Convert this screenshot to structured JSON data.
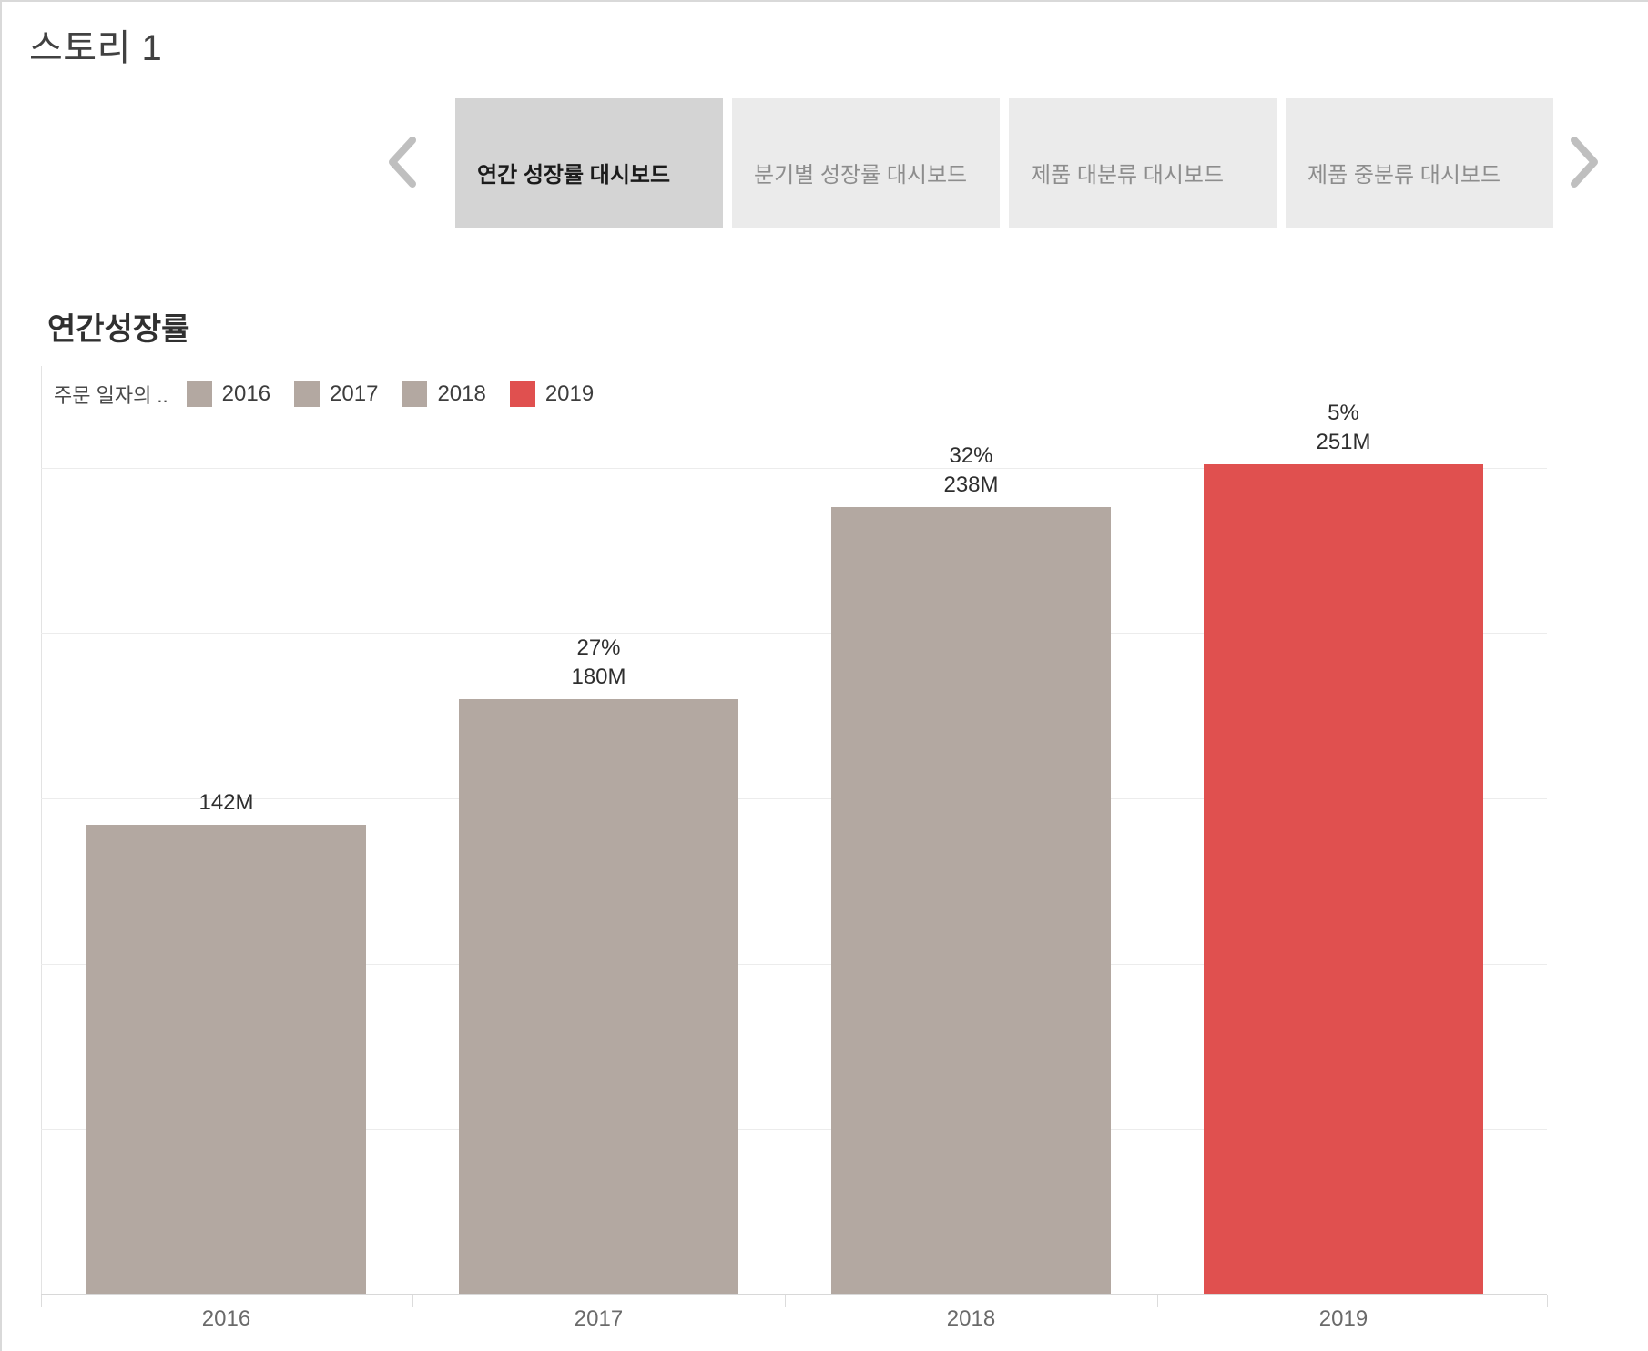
{
  "window": {
    "title": "스토리 1"
  },
  "story_nav": {
    "prev_icon": "chevron-left",
    "next_icon": "chevron-right",
    "tabs": [
      {
        "label": "연간 성장률 대시보드",
        "active": true
      },
      {
        "label": "분기별 성장률 대시보드",
        "active": false
      },
      {
        "label": "제품 대분류 대시보드",
        "active": false
      },
      {
        "label": "제품 중분류 대시보드",
        "active": false
      }
    ]
  },
  "sheet": {
    "title": "연간성장률",
    "legend_title": "주문 일자의 .."
  },
  "chart_data": {
    "type": "bar",
    "title": "연간성장률",
    "categories": [
      "2016",
      "2017",
      "2018",
      "2019"
    ],
    "values_millions": [
      142,
      180,
      238,
      251
    ],
    "value_labels": [
      "142M",
      "180M",
      "238M",
      "251M"
    ],
    "growth_labels": [
      "",
      "27%",
      "32%",
      "5%"
    ],
    "bar_colors": [
      "#b3a8a1",
      "#b3a8a1",
      "#b3a8a1",
      "#e0504f"
    ],
    "legend": {
      "title": "주문 일자의 ..",
      "position": "top-left",
      "items": [
        {
          "label": "2016",
          "color": "#b3a8a1"
        },
        {
          "label": "2017",
          "color": "#b3a8a1"
        },
        {
          "label": "2018",
          "color": "#b3a8a1"
        },
        {
          "label": "2019",
          "color": "#e0504f"
        }
      ]
    },
    "xlabel": "",
    "ylabel": "",
    "y_axis": {
      "min_millions": 0,
      "max_millions": 264,
      "gridlines_at_millions": [
        50,
        100,
        150,
        200,
        250
      ]
    },
    "grid": true
  },
  "colors": {
    "bar_gray": "#b3a8a1",
    "bar_red": "#e0504f",
    "tab_active_bg": "#d4d4d4",
    "tab_inactive_bg": "#ebebeb",
    "tab_active_text": "#1b1b1b",
    "tab_inactive_text": "#8d8d8d",
    "gridline": "#ececec",
    "axis_line": "#d8d8d8",
    "axis_label": "#6a6a6a"
  }
}
